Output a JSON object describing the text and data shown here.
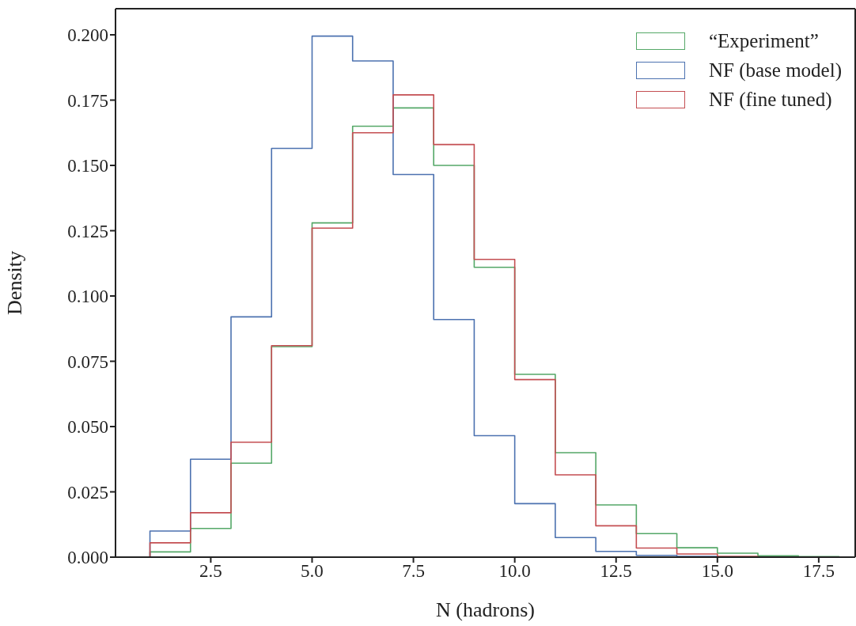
{
  "chart_data": {
    "type": "histogram",
    "xlabel": "N (hadrons)",
    "ylabel": "Density",
    "bins": [
      1,
      2,
      3,
      4,
      5,
      6,
      7,
      8,
      9,
      10,
      11,
      12,
      13,
      14,
      15,
      16,
      17,
      18
    ],
    "series": [
      {
        "name": "“Experiment”",
        "color": "#55a868",
        "values": [
          0.002,
          0.011,
          0.036,
          0.0806,
          0.128,
          0.165,
          0.172,
          0.15,
          0.111,
          0.07,
          0.04,
          0.02,
          0.009,
          0.0036,
          0.0015,
          0.0005,
          0.0002
        ]
      },
      {
        "name": "NF (base model)",
        "color": "#4c72b0",
        "values": [
          0.01,
          0.0375,
          0.092,
          0.1565,
          0.1995,
          0.19,
          0.1465,
          0.091,
          0.0465,
          0.0205,
          0.0075,
          0.0022,
          0.0007,
          0.0003,
          0,
          0,
          0
        ]
      },
      {
        "name": "NF (fine tuned)",
        "color": "#c44e52",
        "values": [
          0.0055,
          0.017,
          0.044,
          0.081,
          0.126,
          0.1625,
          0.177,
          0.158,
          0.114,
          0.068,
          0.0315,
          0.012,
          0.0035,
          0.0012,
          0.0003,
          0,
          0
        ]
      }
    ],
    "xlim": [
      0.15,
      18.4
    ],
    "xticks": [
      {
        "value": 2.5,
        "label": "2.5"
      },
      {
        "value": 5,
        "label": "5.0"
      },
      {
        "value": 7.5,
        "label": "7.5"
      },
      {
        "value": 10,
        "label": "10.0"
      },
      {
        "value": 12.5,
        "label": "12.5"
      },
      {
        "value": 15,
        "label": "15.0"
      },
      {
        "value": 17.5,
        "label": "17.5"
      }
    ],
    "ylim": [
      0,
      0.21
    ],
    "yticks": [
      {
        "value": 0,
        "label": "0.000"
      },
      {
        "value": 0.025,
        "label": "0.025"
      },
      {
        "value": 0.05,
        "label": "0.050"
      },
      {
        "value": 0.075,
        "label": "0.075"
      },
      {
        "value": 0.1,
        "label": "0.100"
      },
      {
        "value": 0.125,
        "label": "0.125"
      },
      {
        "value": 0.15,
        "label": "0.150"
      },
      {
        "value": 0.175,
        "label": "0.175"
      },
      {
        "value": 0.2,
        "label": "0.200"
      }
    ],
    "legend": "top right"
  }
}
